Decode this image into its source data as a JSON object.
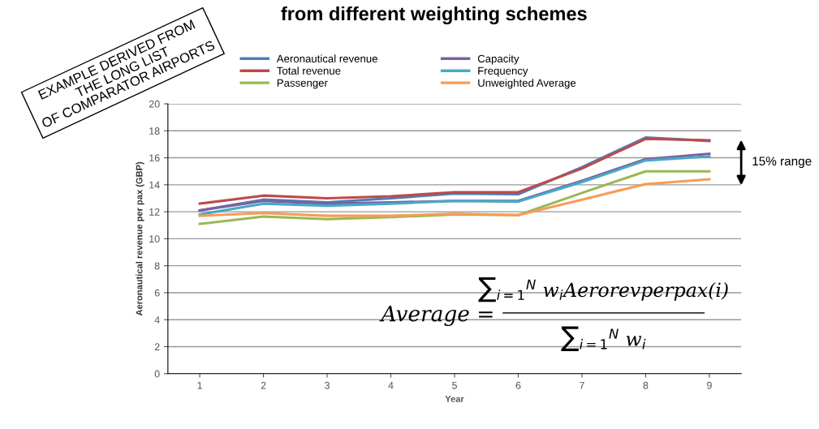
{
  "chart_data": {
    "type": "line",
    "title": "from different weighting schemes",
    "xlabel": "Year",
    "ylabel": "Aeronautical revenue per pax (GBP)",
    "categories": [
      "1",
      "2",
      "3",
      "4",
      "5",
      "6",
      "7",
      "8",
      "9"
    ],
    "series": [
      {
        "name": "Aeronautical revenue",
        "color": "#4a7ebb",
        "values": [
          12.1,
          12.9,
          12.7,
          13.0,
          13.35,
          13.3,
          15.3,
          17.5,
          17.25
        ]
      },
      {
        "name": "Total revenue",
        "color": "#be4b48",
        "values": [
          12.6,
          13.2,
          13.0,
          13.15,
          13.45,
          13.45,
          15.2,
          17.4,
          17.3
        ]
      },
      {
        "name": "Passenger",
        "color": "#98b954",
        "values": [
          11.1,
          11.65,
          11.45,
          11.6,
          11.8,
          11.75,
          13.4,
          15.0,
          15.0
        ]
      },
      {
        "name": "Capacity",
        "color": "#7d60a0",
        "values": [
          12.1,
          12.8,
          12.6,
          12.7,
          12.8,
          12.8,
          14.3,
          15.9,
          16.3
        ]
      },
      {
        "name": "Frequency",
        "color": "#46aac5",
        "values": [
          11.8,
          12.6,
          12.45,
          12.6,
          12.8,
          12.75,
          14.2,
          15.8,
          16.1
        ]
      },
      {
        "name": "Unweighted Average",
        "color": "#f59d56",
        "values": [
          11.7,
          11.9,
          11.7,
          11.7,
          11.85,
          11.75,
          12.9,
          14.05,
          14.4
        ]
      }
    ],
    "ylim": [
      0,
      20
    ],
    "yticks": [
      0,
      2,
      4,
      6,
      8,
      10,
      12,
      14,
      16,
      18,
      20
    ],
    "grid": "y",
    "legend": "top",
    "marker": "none",
    "line_style": "solid",
    "annotations": [
      "EXAMPLE DERIVED FROM\nTHE LONG LIST\nOF COMPARATOR AIRPORTS",
      "15% range",
      "Average =",
      "∑$_{i=1}$$^{N}$ w$_{i}$Aerorevperpax(i)",
      "∑$_{i=1}$$^{N}$ w$_{i}$"
    ]
  }
}
